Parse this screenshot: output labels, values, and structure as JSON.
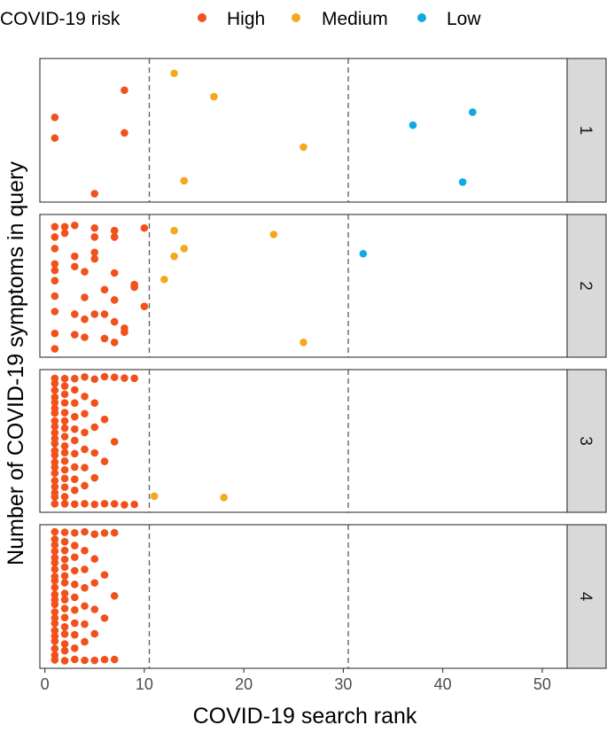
{
  "chart_data": {
    "type": "scatter",
    "title": "",
    "xlabel": "COVID-19 search rank",
    "ylabel": "Number of COVID-19 symptoms in query",
    "xlim": [
      -0.5,
      52.5
    ],
    "x_ticks": [
      0,
      10,
      20,
      30,
      40,
      50
    ],
    "x_tick_labels": [
      "0",
      "10",
      "20",
      "30",
      "40",
      "50"
    ],
    "reference_lines_x": [
      10.5,
      30.5
    ],
    "grid": false,
    "legend": {
      "title": "COVID-19 risk",
      "position": "top",
      "entries": [
        {
          "name": "High",
          "color": "#f1511b"
        },
        {
          "name": "Medium",
          "color": "#f5a81c"
        },
        {
          "name": "Low",
          "color": "#12a9e0"
        }
      ]
    },
    "facets": [
      {
        "label": "1",
        "points": [
          {
            "x": 13,
            "y": 0.06,
            "risk": "Medium"
          },
          {
            "x": 17,
            "y": 0.24,
            "risk": "Medium"
          },
          {
            "x": 26,
            "y": 0.63,
            "risk": "Medium"
          },
          {
            "x": 14,
            "y": 0.89,
            "risk": "Medium"
          },
          {
            "x": 8,
            "y": 0.19,
            "risk": "High"
          },
          {
            "x": 1,
            "y": 0.4,
            "risk": "High"
          },
          {
            "x": 8,
            "y": 0.52,
            "risk": "High"
          },
          {
            "x": 1,
            "y": 0.56,
            "risk": "High"
          },
          {
            "x": 5,
            "y": 0.99,
            "risk": "High"
          },
          {
            "x": 43,
            "y": 0.36,
            "risk": "Low"
          },
          {
            "x": 37,
            "y": 0.46,
            "risk": "Low"
          },
          {
            "x": 42,
            "y": 0.9,
            "risk": "Low"
          }
        ]
      },
      {
        "label": "2",
        "points": [
          {
            "x": 1,
            "y": 0.04,
            "risk": "High"
          },
          {
            "x": 2,
            "y": 0.04,
            "risk": "High"
          },
          {
            "x": 3,
            "y": 0.03,
            "risk": "High"
          },
          {
            "x": 5,
            "y": 0.05,
            "risk": "High"
          },
          {
            "x": 7,
            "y": 0.07,
            "risk": "High"
          },
          {
            "x": 10,
            "y": 0.05,
            "risk": "High"
          },
          {
            "x": 1,
            "y": 0.12,
            "risk": "High"
          },
          {
            "x": 2,
            "y": 0.09,
            "risk": "High"
          },
          {
            "x": 5,
            "y": 0.12,
            "risk": "High"
          },
          {
            "x": 7,
            "y": 0.12,
            "risk": "High"
          },
          {
            "x": 1,
            "y": 0.21,
            "risk": "High"
          },
          {
            "x": 3,
            "y": 0.27,
            "risk": "High"
          },
          {
            "x": 5,
            "y": 0.24,
            "risk": "High"
          },
          {
            "x": 5,
            "y": 0.29,
            "risk": "High"
          },
          {
            "x": 1,
            "y": 0.33,
            "risk": "High"
          },
          {
            "x": 1,
            "y": 0.38,
            "risk": "High"
          },
          {
            "x": 3,
            "y": 0.35,
            "risk": "High"
          },
          {
            "x": 4,
            "y": 0.39,
            "risk": "High"
          },
          {
            "x": 7,
            "y": 0.4,
            "risk": "High"
          },
          {
            "x": 1,
            "y": 0.46,
            "risk": "High"
          },
          {
            "x": 9,
            "y": 0.49,
            "risk": "High"
          },
          {
            "x": 9,
            "y": 0.51,
            "risk": "High"
          },
          {
            "x": 6,
            "y": 0.53,
            "risk": "High"
          },
          {
            "x": 1,
            "y": 0.58,
            "risk": "High"
          },
          {
            "x": 4,
            "y": 0.59,
            "risk": "High"
          },
          {
            "x": 7,
            "y": 0.61,
            "risk": "High"
          },
          {
            "x": 10,
            "y": 0.66,
            "risk": "High"
          },
          {
            "x": 1,
            "y": 0.7,
            "risk": "High"
          },
          {
            "x": 3,
            "y": 0.72,
            "risk": "High"
          },
          {
            "x": 5,
            "y": 0.72,
            "risk": "High"
          },
          {
            "x": 6,
            "y": 0.72,
            "risk": "High"
          },
          {
            "x": 4,
            "y": 0.76,
            "risk": "High"
          },
          {
            "x": 7,
            "y": 0.78,
            "risk": "High"
          },
          {
            "x": 8,
            "y": 0.83,
            "risk": "High"
          },
          {
            "x": 8,
            "y": 0.86,
            "risk": "High"
          },
          {
            "x": 1,
            "y": 0.87,
            "risk": "High"
          },
          {
            "x": 3,
            "y": 0.88,
            "risk": "High"
          },
          {
            "x": 4,
            "y": 0.9,
            "risk": "High"
          },
          {
            "x": 6,
            "y": 0.91,
            "risk": "High"
          },
          {
            "x": 7,
            "y": 0.94,
            "risk": "High"
          },
          {
            "x": 1,
            "y": 0.99,
            "risk": "High"
          },
          {
            "x": 13,
            "y": 0.07,
            "risk": "Medium"
          },
          {
            "x": 23,
            "y": 0.1,
            "risk": "Medium"
          },
          {
            "x": 14,
            "y": 0.21,
            "risk": "Medium"
          },
          {
            "x": 13,
            "y": 0.27,
            "risk": "Medium"
          },
          {
            "x": 12,
            "y": 0.45,
            "risk": "Medium"
          },
          {
            "x": 26,
            "y": 0.94,
            "risk": "Medium"
          },
          {
            "x": 32,
            "y": 0.25,
            "risk": "Low"
          }
        ]
      },
      {
        "label": "3",
        "points": [
          {
            "x": 11,
            "y": 0.93,
            "risk": "Medium"
          },
          {
            "x": 18,
            "y": 0.94,
            "risk": "Medium"
          }
        ],
        "dense_high": {
          "min_rank": 1,
          "max_rank": 9,
          "risk": "High",
          "note": "many overlapping High-risk points at ranks 1-9"
        }
      },
      {
        "label": "4",
        "points": [],
        "dense_high": {
          "min_rank": 1,
          "max_rank": 7,
          "risk": "High",
          "note": "many overlapping High-risk points at ranks 1-7"
        }
      }
    ]
  }
}
